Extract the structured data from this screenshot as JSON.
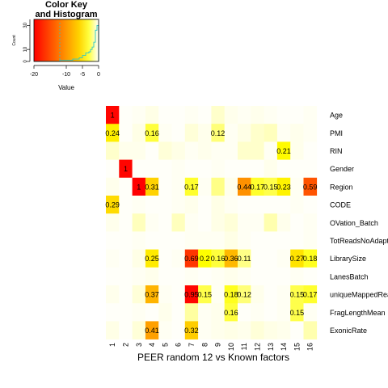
{
  "chart_data": [
    {
      "type": "heatmap",
      "title": "PEER random 12 vs Known factors",
      "x_categories": [
        "1",
        "2",
        "3",
        "4",
        "5",
        "6",
        "7",
        "8",
        "9",
        "10",
        "11",
        "12",
        "13",
        "14",
        "15",
        "16"
      ],
      "y_categories": [
        "Age",
        "PMI",
        "RIN",
        "Gender",
        "Region",
        "CODE",
        "OVation_Batch",
        "TotReadsNoAdapt",
        "LibrarySize",
        "LanesBatch",
        "uniqueMappedReads",
        "FragLengthMean",
        "ExonicRate"
      ],
      "colorscale": "heat (red high, yellow mid, white low)",
      "values": [
        [
          0.95,
          0.01,
          0.02,
          0.04,
          0.01,
          0.01,
          0.02,
          0.01,
          0.06,
          0.03,
          0.02,
          0.03,
          0.02,
          0.01,
          0.01,
          0.02
        ],
        [
          0.24,
          0.01,
          0.04,
          0.16,
          0.02,
          0.01,
          0.05,
          0.03,
          0.12,
          0.02,
          0.04,
          0.06,
          0.07,
          0.02,
          0.03,
          0.02
        ],
        [
          0.06,
          0.03,
          0.03,
          0.01,
          0.05,
          0.04,
          0.02,
          0.03,
          0.02,
          0.02,
          0.06,
          0.06,
          0.02,
          0.21,
          0.03,
          0.01
        ],
        [
          0.01,
          0.95,
          0.01,
          0.01,
          0.01,
          0.02,
          0.01,
          0.01,
          0.02,
          0.01,
          0.01,
          0.01,
          0.03,
          0.01,
          0.01,
          0.01
        ],
        [
          0.03,
          0.01,
          1.0,
          0.31,
          0.01,
          0.02,
          0.17,
          0.02,
          0.11,
          0.03,
          0.44,
          0.17,
          0.15,
          0.23,
          0.02,
          0.59
        ],
        [
          0.29,
          0.01,
          0.02,
          0.01,
          0.01,
          0.02,
          0.03,
          0.01,
          0.04,
          0.02,
          0.01,
          0.01,
          0.01,
          0.01,
          0.02,
          0.01
        ],
        [
          0.03,
          0.01,
          0.07,
          0.02,
          0.01,
          0.07,
          0.02,
          0.01,
          0.04,
          0.05,
          0.02,
          0.02,
          0.08,
          0.03,
          0.01,
          0.02
        ],
        [
          0.01,
          0.01,
          0.02,
          0.01,
          0.01,
          0.01,
          0.02,
          0.02,
          0.02,
          0.04,
          0.02,
          0.01,
          0.01,
          0.01,
          0.01,
          0.02
        ],
        [
          0.02,
          0.01,
          0.04,
          0.25,
          0.01,
          0.02,
          0.69,
          0.2,
          0.16,
          0.36,
          0.11,
          0.01,
          0.01,
          0.02,
          0.27,
          0.18
        ],
        [
          0.01,
          0.01,
          0.02,
          0.03,
          0.01,
          0.01,
          0.02,
          0.01,
          0.02,
          0.03,
          0.02,
          0.01,
          0.01,
          0.01,
          0.02,
          0.01
        ],
        [
          0.03,
          0.01,
          0.05,
          0.37,
          0.02,
          0.01,
          0.95,
          0.15,
          0.02,
          0.18,
          0.12,
          0.03,
          0.01,
          0.02,
          0.15,
          0.17
        ],
        [
          0.01,
          0.01,
          0.02,
          0.01,
          0.03,
          0.01,
          0.09,
          0.02,
          0.03,
          0.16,
          0.01,
          0.02,
          0.01,
          0.02,
          0.15,
          0.02
        ],
        [
          0.04,
          0.01,
          0.05,
          0.41,
          0.02,
          0.01,
          0.32,
          0.02,
          0.03,
          0.04,
          0.03,
          0.05,
          0.04,
          0.03,
          0.01,
          0.08
        ]
      ],
      "labels": [
        [
          "1",
          "",
          "",
          "",
          "",
          "",
          "",
          "",
          "",
          "",
          "",
          "",
          "",
          "",
          "",
          ""
        ],
        [
          "0.24",
          "",
          "",
          "0.16",
          "",
          "",
          "",
          "",
          "0.12",
          "",
          "",
          "",
          "",
          "",
          "",
          ""
        ],
        [
          "",
          "",
          "",
          "",
          "",
          "",
          "",
          "",
          "",
          "",
          "",
          "",
          "",
          "0.21",
          "",
          ""
        ],
        [
          "",
          "1",
          "",
          "",
          "",
          "",
          "",
          "",
          "",
          "",
          "",
          "",
          "",
          "",
          "",
          ""
        ],
        [
          "",
          "",
          "1",
          "0.31",
          "",
          "",
          "0.17",
          "",
          "",
          "",
          "0.44",
          "0.17",
          "0.15",
          "0.23",
          "",
          "0.59"
        ],
        [
          "0.29",
          "",
          "",
          "",
          "",
          "",
          "",
          "",
          "",
          "",
          "",
          "",
          "",
          "",
          "",
          ""
        ],
        [
          "",
          "",
          "",
          "",
          "",
          "",
          "",
          "",
          "",
          "",
          "",
          "",
          "",
          "",
          "",
          ""
        ],
        [
          "",
          "",
          "",
          "",
          "",
          "",
          "",
          "",
          "",
          "",
          "",
          "",
          "",
          "",
          "",
          ""
        ],
        [
          "",
          "",
          "",
          "0.25",
          "",
          "",
          "0.69",
          "0.2",
          "0.16",
          "0.36",
          "0.11",
          "",
          "",
          "",
          "0.27",
          "0.18"
        ],
        [
          "",
          "",
          "",
          "",
          "",
          "",
          "",
          "",
          "",
          "",
          "",
          "",
          "",
          "",
          "",
          ""
        ],
        [
          "",
          "",
          "",
          "0.37",
          "",
          "",
          "0.95",
          "0.15",
          "",
          "0.18",
          "0.12",
          "",
          "",
          "",
          "0.15",
          "0.17"
        ],
        [
          "",
          "",
          "",
          "",
          "",
          "",
          "",
          "",
          "",
          "0.16",
          "",
          "",
          "",
          "",
          "0.15",
          ""
        ],
        [
          "",
          "",
          "",
          "0.41",
          "",
          "",
          "0.32",
          "",
          "",
          "",
          "",
          "",
          "",
          "",
          "",
          ""
        ]
      ]
    },
    {
      "type": "histogram",
      "title": "Color Key\nand Histogram",
      "xlabel": "Value",
      "ylabel": "Count",
      "xlim": [
        -20,
        0
      ],
      "ylim": [
        0,
        35
      ],
      "xticks": [
        -20,
        -10,
        -5,
        0
      ],
      "yticks": [
        0,
        10,
        30
      ],
      "bins": [
        -20,
        -18,
        -16,
        -14,
        -12,
        -10,
        -8,
        -6,
        -5,
        -4,
        -3,
        -2.5,
        -2,
        -1.5,
        -1,
        -0.5,
        0
      ],
      "counts": [
        0,
        0,
        0,
        0,
        1,
        1,
        2,
        3,
        5,
        7,
        8,
        10,
        12,
        16,
        26,
        30
      ]
    }
  ]
}
